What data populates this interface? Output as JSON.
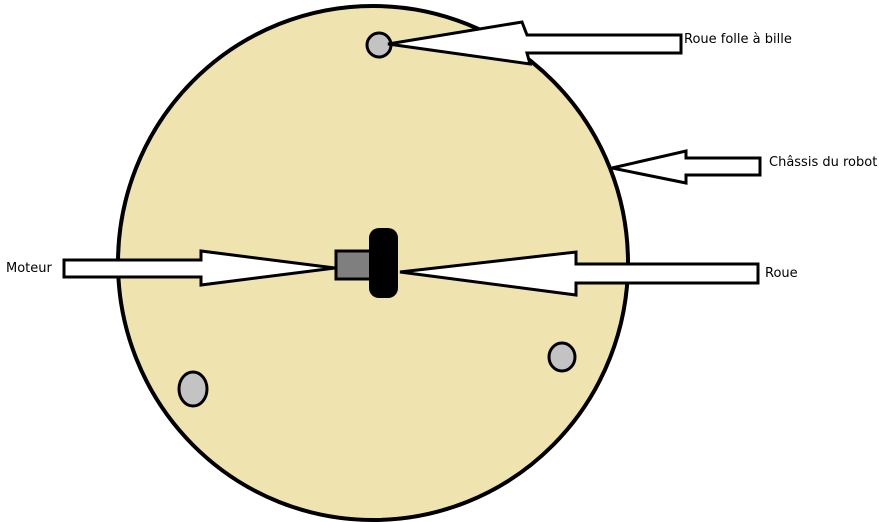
{
  "labels": {
    "caster": "Roue folle à bille",
    "chassis": "Châssis du robot",
    "motor": "Moteur",
    "wheel": "Roue"
  },
  "colors": {
    "chassis_fill": "#efe4b0",
    "outline": "#000000",
    "caster_fill": "#c3c3c3",
    "motor_fill": "#7f7f7f",
    "wheel_fill": "#000000",
    "arrow_fill": "#ffffff",
    "background": "#ffffff"
  }
}
